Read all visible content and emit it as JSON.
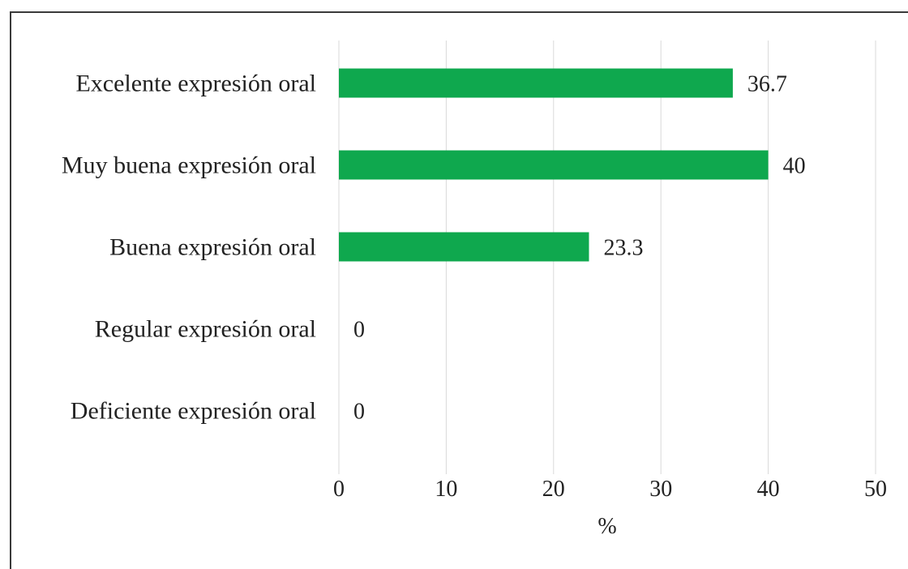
{
  "chart_data": {
    "type": "bar",
    "orientation": "horizontal",
    "categories": [
      "Excelente expresión oral",
      "Muy buena expresión oral",
      "Buena expresión oral",
      "Regular expresión oral",
      "Deficiente expresión oral"
    ],
    "values": [
      36.7,
      40,
      23.3,
      0,
      0
    ],
    "value_labels": [
      "36.7",
      "40",
      "23.3",
      "0",
      "0"
    ],
    "xlim": [
      0,
      50
    ],
    "x_ticks": [
      0,
      10,
      20,
      30,
      40,
      50
    ],
    "xlabel": "%",
    "grid": true,
    "legend": "none",
    "colors": {
      "bar": "#0fa84e",
      "grid": "#d9d9d9",
      "text": "#222222"
    }
  }
}
